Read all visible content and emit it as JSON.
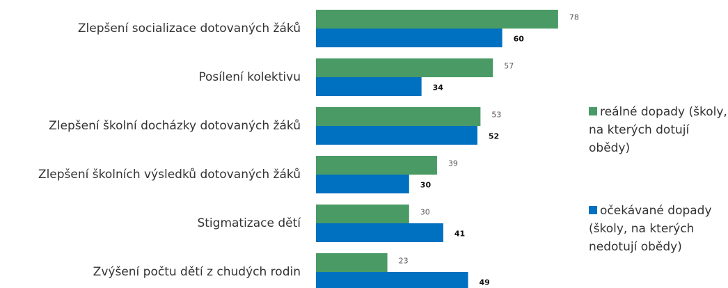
{
  "chart_data": {
    "type": "bar",
    "orientation": "horizontal",
    "categories": [
      "Zlepšení socializace dotovaných žáků",
      "Posílení kolektivu",
      "Zlepšení školní docházky dotovaných žáků",
      "Zlepšení školních výsledků dotovaných žáků",
      "Stigmatizace dětí",
      "Zvýšení počtu dětí z chudých rodin"
    ],
    "series": [
      {
        "name": "reálné dopady (školy, na kterých dotují obědy)",
        "color": "#4a9a66",
        "values": [
          78,
          57,
          53,
          39,
          30,
          23
        ]
      },
      {
        "name": "očekávané dopady (školy, na kterých nedotují obědy)",
        "color": "#0070c0",
        "values": [
          60,
          34,
          52,
          30,
          41,
          49
        ]
      }
    ],
    "legend": "right"
  }
}
